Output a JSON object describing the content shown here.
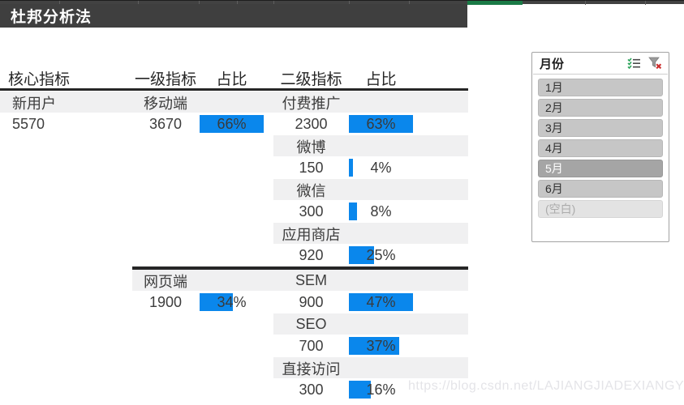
{
  "title_bar": {
    "title": "杜邦分析法"
  },
  "colors": {
    "bar_blue": "#0a87ec",
    "sheet_green": "#1a7a46",
    "header_dark": "#3f3f3f",
    "row_gray": "#f0f0f1"
  },
  "table": {
    "headers": [
      "核心指标",
      "一级指标",
      "占比",
      "二级指标",
      "占比"
    ],
    "rows": [
      {
        "bg": "full",
        "c1": "新用户",
        "c2": "移动端",
        "c4": "付费推广"
      },
      {
        "c1": "5570",
        "c2": "3670",
        "bar1": {
          "label": "66%",
          "fill": 100
        },
        "c4": "2300",
        "bar2": {
          "label": "63%",
          "fill": 100
        }
      },
      {
        "bg": "right",
        "c4": "微博"
      },
      {
        "c4": "150",
        "bar2": {
          "label": "4%",
          "fill": 6.3
        }
      },
      {
        "bg": "right",
        "c4": "微信"
      },
      {
        "c4": "300",
        "bar2": {
          "label": "8%",
          "fill": 12.7
        }
      },
      {
        "bg": "right",
        "c4": "应用商店"
      },
      {
        "c4": "920",
        "bar2": {
          "label": "25%",
          "fill": 39.7
        }
      },
      {
        "divider": true
      },
      {
        "bg": "mid",
        "c2": "网页端",
        "c4": "SEM"
      },
      {
        "c2": "1900",
        "bar1": {
          "label": "34%",
          "fill": 51.5
        },
        "c4": "900",
        "bar2": {
          "label": "47%",
          "fill": 100
        }
      },
      {
        "bg": "right",
        "c4": "SEO"
      },
      {
        "c4": "700",
        "bar2": {
          "label": "37%",
          "fill": 78.7
        }
      },
      {
        "bg": "right",
        "c4": "直接访问"
      },
      {
        "c4": "300",
        "bar2": {
          "label": "16%",
          "fill": 34
        }
      }
    ]
  },
  "slicer": {
    "caption": "月份",
    "icons": [
      "multi-select-icon",
      "clear-filter-icon"
    ],
    "items": [
      {
        "label": "1月",
        "state": "normal"
      },
      {
        "label": "2月",
        "state": "normal"
      },
      {
        "label": "3月",
        "state": "normal"
      },
      {
        "label": "4月",
        "state": "normal"
      },
      {
        "label": "5月",
        "state": "selected"
      },
      {
        "label": "6月",
        "state": "normal"
      },
      {
        "label": "(空白)",
        "state": "empty"
      }
    ]
  },
  "watermark": {
    "text": "https://blog.csdn.net/LAJIANGJIADEXIANGYE"
  }
}
